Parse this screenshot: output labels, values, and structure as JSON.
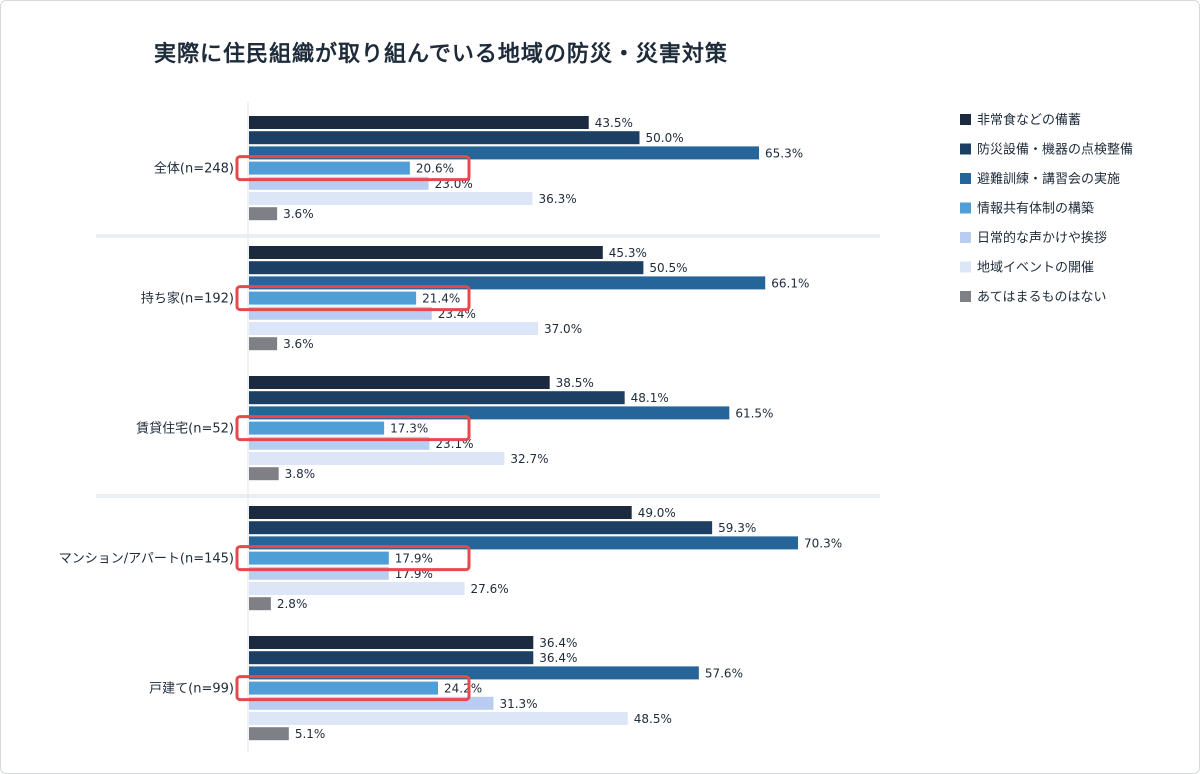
{
  "chart_data": {
    "type": "bar",
    "orientation": "horizontal",
    "title": "実際に住民組織が取り組んでいる地域の防災・災害対策",
    "categories": [
      "全体(n=248)",
      "持ち家(n=192)",
      "賃貸住宅(n=52)",
      "マンション/アパート(n=145)",
      "戸建て(n=99)"
    ],
    "series": [
      {
        "name": "非常食などの備蓄",
        "color": "#1b2a3e",
        "values": [
          43.5,
          45.3,
          38.5,
          49.0,
          36.4
        ],
        "labels": [
          "43.5%",
          "45.3%",
          "38.5%",
          "49.0%",
          "36.4%"
        ]
      },
      {
        "name": "防災設備・機器の点検整備",
        "color": "#1d3f63",
        "values": [
          50.0,
          50.5,
          48.1,
          59.3,
          36.4
        ],
        "labels": [
          "50.0%",
          "50.5%",
          "48.1%",
          "59.3%",
          "36.4%"
        ]
      },
      {
        "name": "避難訓練・講習会の実施",
        "color": "#25659a",
        "values": [
          65.3,
          66.1,
          61.5,
          70.3,
          57.6
        ],
        "labels": [
          "65.3%",
          "66.1%",
          "61.5%",
          "70.3%",
          "57.6%"
        ]
      },
      {
        "name": "情報共有体制の構築",
        "color": "#4f9fd6",
        "values": [
          20.6,
          21.4,
          17.3,
          17.9,
          24.2
        ],
        "labels": [
          "20.6%",
          "21.4%",
          "17.3%",
          "17.9%",
          "24.2%"
        ],
        "highlighted": true
      },
      {
        "name": "日常的な声かけや挨拶",
        "color": "#b9cdf2",
        "values": [
          23.0,
          23.4,
          23.1,
          17.9,
          31.3
        ],
        "labels": [
          "23.0%",
          "23.4%",
          "23.1%",
          "17.9%",
          "31.3%"
        ]
      },
      {
        "name": "地域イベントの開催",
        "color": "#dde6f6",
        "values": [
          36.3,
          37.0,
          32.7,
          27.6,
          48.5
        ],
        "labels": [
          "36.3%",
          "37.0%",
          "32.7%",
          "27.6%",
          "48.5%"
        ]
      },
      {
        "name": "あてはまるものはない",
        "color": "#7e8085",
        "values": [
          3.6,
          3.6,
          3.8,
          2.8,
          5.1
        ],
        "labels": [
          "3.6%",
          "3.6%",
          "3.8%",
          "2.8%",
          "5.1%"
        ]
      }
    ],
    "xlim": [
      0,
      100
    ],
    "legend_position": "right",
    "highlight_color": "#e5484d",
    "grid": false
  }
}
